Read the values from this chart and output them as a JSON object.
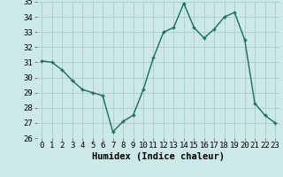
{
  "x": [
    0,
    1,
    2,
    3,
    4,
    5,
    6,
    7,
    8,
    9,
    10,
    11,
    12,
    13,
    14,
    15,
    16,
    17,
    18,
    19,
    20,
    21,
    22,
    23
  ],
  "y": [
    31.1,
    31.0,
    30.5,
    29.8,
    29.2,
    29.0,
    28.8,
    26.4,
    27.1,
    27.5,
    29.2,
    31.3,
    33.0,
    33.3,
    34.9,
    33.3,
    32.6,
    33.2,
    34.0,
    34.3,
    32.5,
    28.3,
    27.5,
    27.0
  ],
  "line_color": "#1a6b5a",
  "bg_color": "#cce8e8",
  "grid_color": "#aacccc",
  "xlabel": "Humidex (Indice chaleur)",
  "ylim": [
    26,
    35
  ],
  "xlim_min": -0.5,
  "xlim_max": 23.5,
  "yticks": [
    26,
    27,
    28,
    29,
    30,
    31,
    32,
    33,
    34,
    35
  ],
  "xticks": [
    0,
    1,
    2,
    3,
    4,
    5,
    6,
    7,
    8,
    9,
    10,
    11,
    12,
    13,
    14,
    15,
    16,
    17,
    18,
    19,
    20,
    21,
    22,
    23
  ],
  "xlabel_fontsize": 7.5,
  "tick_fontsize": 6.5
}
